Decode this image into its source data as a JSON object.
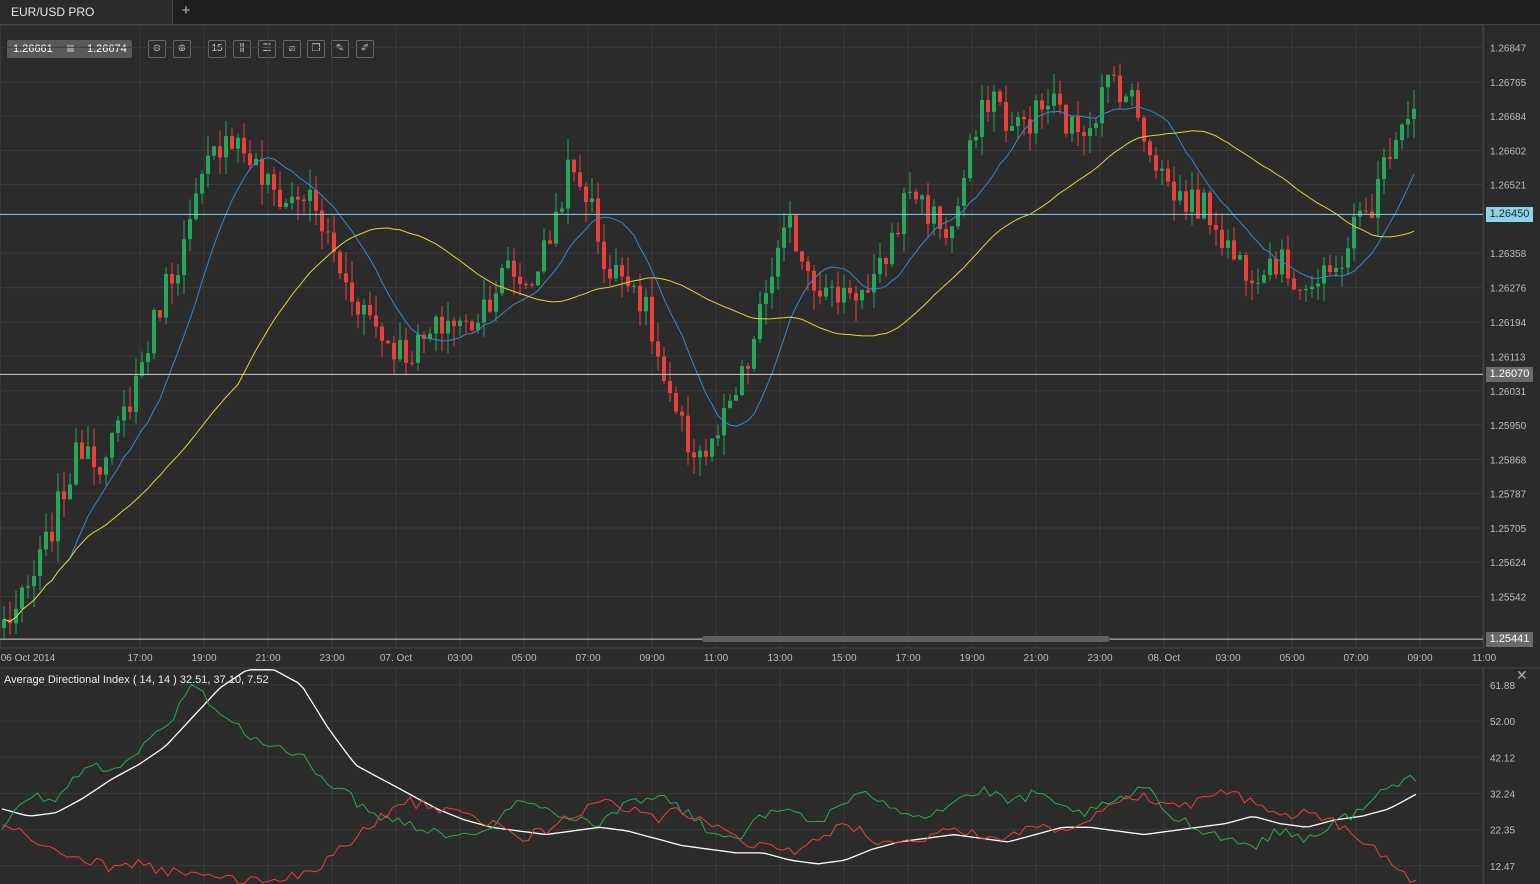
{
  "tab": {
    "title": "EUR/USD PRO",
    "add_label": "+"
  },
  "quote": {
    "bid": "1.26661",
    "ask": "1.26674"
  },
  "toolbar": {
    "tools": [
      {
        "name": "zoom-out-icon",
        "glyph": "⊖"
      },
      {
        "name": "zoom-in-icon",
        "glyph": "⊕"
      },
      {
        "name": "timeframe-icon",
        "glyph": "15"
      },
      {
        "name": "chart-type-icon",
        "glyph": "⫼"
      },
      {
        "name": "indicators-icon",
        "glyph": "☰"
      },
      {
        "name": "chart-settings-icon",
        "glyph": "⧄"
      },
      {
        "name": "copy-icon",
        "glyph": "❐"
      },
      {
        "name": "edit-icon",
        "glyph": "✎"
      },
      {
        "name": "draw-icon",
        "glyph": "✐"
      }
    ]
  },
  "colors": {
    "background": "#2b2b2b",
    "grid": "#3a3a3a",
    "bull": "#26a65b",
    "bear": "#e8413c",
    "ma_fast": "#3a86c8",
    "ma_slow": "#e6d23a",
    "hline_current": "#8fd3e8",
    "hline_other": "#cfcfcf",
    "adx_line": "#ffffff",
    "plus_di": "#2fa84f",
    "minus_di": "#e8413c"
  },
  "chart_data": [
    {
      "type": "candlestick",
      "symbol": "EUR/USD PRO",
      "y_ticks": [
        "1.26847",
        "1.26765",
        "1.26684",
        "1.26602",
        "1.26521",
        "1.26358",
        "1.26276",
        "1.26194",
        "1.26113",
        "1.26031",
        "1.25950",
        "1.25868",
        "1.25787",
        "1.25705",
        "1.25624",
        "1.25542"
      ],
      "ylim": [
        1.2542,
        1.269
      ],
      "x_ticks": [
        "06 Oct 2014",
        "17:00",
        "19:00",
        "21:00",
        "23:00",
        "07. Oct",
        "03:00",
        "05:00",
        "07:00",
        "09:00",
        "11:00",
        "13:00",
        "15:00",
        "17:00",
        "19:00",
        "21:00",
        "23:00",
        "08. Oct",
        "03:00",
        "05:00",
        "07:00",
        "09:00",
        "11:00"
      ],
      "price_lines": [
        {
          "label": "1.26450",
          "value": 1.2645,
          "style": "current"
        },
        {
          "label": "1.26070",
          "value": 1.2607,
          "style": "other"
        },
        {
          "label": "1.25441",
          "value": 1.25441,
          "style": "other"
        }
      ],
      "anchors": [
        1.2548,
        1.2553,
        1.2565,
        1.258,
        1.2592,
        1.2585,
        1.2598,
        1.2612,
        1.2628,
        1.2638,
        1.2655,
        1.2665,
        1.266,
        1.2652,
        1.2648,
        1.265,
        1.264,
        1.2628,
        1.2622,
        1.2615,
        1.2612,
        1.2615,
        1.262,
        1.2618,
        1.2625,
        1.2632,
        1.2628,
        1.2638,
        1.2655,
        1.265,
        1.263,
        1.2632,
        1.262,
        1.26,
        1.259,
        1.2588,
        1.2598,
        1.261,
        1.263,
        1.2642,
        1.2632,
        1.2625,
        1.2628,
        1.2625,
        1.2638,
        1.2652,
        1.2645,
        1.264,
        1.266,
        1.2675,
        1.2665,
        1.2668,
        1.2672,
        1.2665,
        1.2668,
        1.2678,
        1.2672,
        1.266,
        1.265,
        1.2648,
        1.2645,
        1.2635,
        1.2632,
        1.2635,
        1.263,
        1.2628,
        1.263,
        1.2642,
        1.2648,
        1.2665,
        1.2672
      ]
    },
    {
      "type": "line",
      "title": "Average Directional Index ( 14, 14 ) 32.51, 37.10, 7.52",
      "y_ticks": [
        "61.88",
        "52.00",
        "42.12",
        "32.24",
        "22.35",
        "12.47"
      ],
      "ylim": [
        7.5,
        66.5
      ],
      "series": [
        {
          "key": "adx",
          "anchors": [
            28,
            26,
            27,
            31,
            36,
            40,
            45,
            53,
            61,
            66,
            66,
            62,
            50,
            40,
            36,
            32,
            28,
            25,
            23,
            22,
            21,
            22,
            23,
            22,
            20,
            18,
            17,
            16,
            16,
            14,
            13,
            14,
            17,
            19,
            20,
            21,
            20,
            19,
            21,
            23,
            23,
            22,
            21,
            22,
            23,
            24,
            26,
            24,
            23,
            25,
            26,
            28,
            32
          ]
        },
        {
          "key": "plus_di",
          "anchors": [
            22,
            32,
            30,
            40,
            38,
            44,
            50,
            62,
            55,
            48,
            45,
            42,
            36,
            30,
            26,
            24,
            22,
            20,
            24,
            30,
            28,
            26,
            24,
            30,
            32,
            28,
            22,
            20,
            26,
            28,
            24,
            30,
            32,
            28,
            26,
            30,
            33,
            30,
            32,
            28,
            27,
            30,
            34,
            26,
            23,
            20,
            18,
            22,
            20,
            24,
            28,
            34,
            37
          ]
        },
        {
          "key": "minus_di",
          "anchors": [
            24,
            20,
            16,
            14,
            12,
            13,
            11,
            10,
            9,
            8,
            9,
            10,
            14,
            20,
            26,
            30,
            28,
            26,
            24,
            20,
            22,
            26,
            30,
            28,
            25,
            28,
            24,
            20,
            18,
            16,
            20,
            24,
            20,
            18,
            20,
            22,
            21,
            20,
            24,
            22,
            26,
            30,
            32,
            28,
            30,
            33,
            30,
            26,
            27,
            24,
            20,
            14,
            8
          ]
        }
      ]
    }
  ],
  "indicator_panel": {
    "title": "Average Directional Index ( 14, 14 ) 32.51, 37.10, 7.52",
    "close_label": "✕"
  }
}
